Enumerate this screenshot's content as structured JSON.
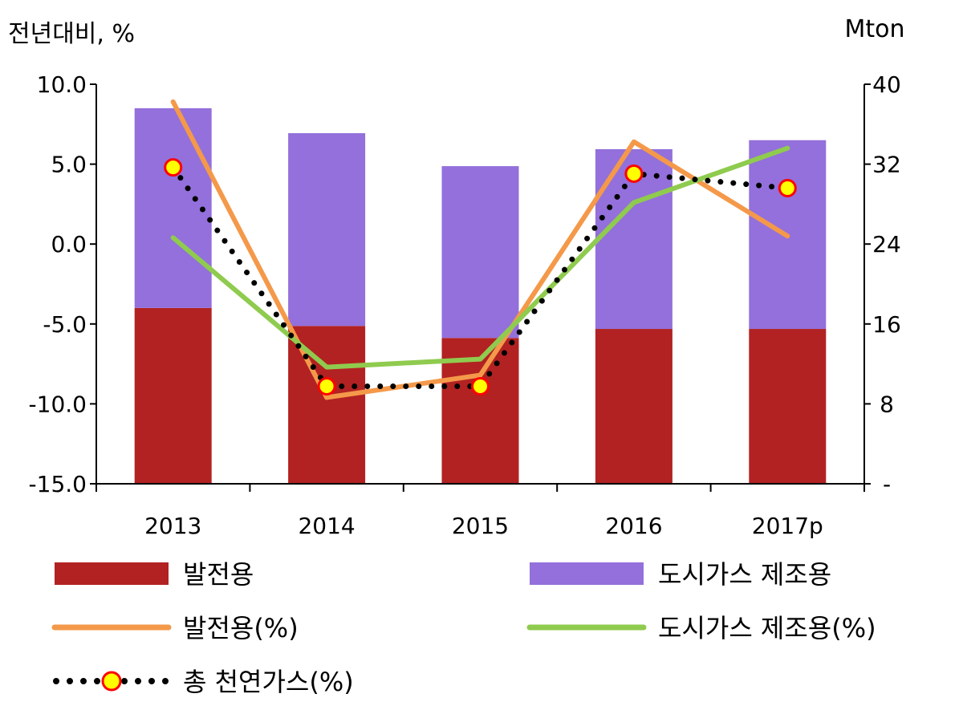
{
  "chart_data": {
    "type": "bar",
    "categories": [
      "2013",
      "2014",
      "2015",
      "2016",
      "2017p"
    ],
    "left_axis": {
      "label": "전년대비, %",
      "ylim": [
        -15,
        10
      ],
      "ticks": [
        "-15.0",
        "-10.0",
        "-5.0",
        "0.0",
        "5.0",
        "10.0"
      ]
    },
    "right_axis": {
      "label": "Mton",
      "ylim": [
        0,
        40
      ],
      "ticks": [
        "-",
        "8",
        "16",
        "24",
        "32",
        "40"
      ]
    },
    "stacked_bars": [
      {
        "name": "발전용",
        "axis": "right",
        "color": "#B22222",
        "values": [
          17.6,
          15.8,
          14.6,
          15.5,
          15.5
        ]
      },
      {
        "name": "도시가스 제조용",
        "axis": "right",
        "color": "#9370DB",
        "values": [
          20.0,
          19.3,
          17.2,
          18.0,
          18.9
        ]
      }
    ],
    "lines": [
      {
        "name": "발전용(%)",
        "axis": "left",
        "color": "#F4994A",
        "style": "solid",
        "values": [
          8.9,
          -9.6,
          -8.2,
          6.4,
          0.5
        ]
      },
      {
        "name": "도시가스 제조용(%)",
        "axis": "left",
        "color": "#8FCB4E",
        "style": "solid",
        "values": [
          0.4,
          -7.7,
          -7.2,
          2.6,
          6.0
        ]
      },
      {
        "name": "총 천연가스(%)",
        "axis": "left",
        "color": "#000000",
        "style": "dotted-markers",
        "marker_fill": "#FFFF00",
        "marker_stroke": "#FF0000",
        "values": [
          4.8,
          -8.9,
          -8.9,
          4.4,
          3.5
        ]
      }
    ],
    "legend": {
      "placement": "bottom",
      "items": [
        {
          "label": "발전용",
          "kind": "bar",
          "color": "#B22222"
        },
        {
          "label": "도시가스 제조용",
          "kind": "bar",
          "color": "#9370DB"
        },
        {
          "label": "발전용(%)",
          "kind": "line",
          "color": "#F4994A"
        },
        {
          "label": "도시가스 제조용(%)",
          "kind": "line",
          "color": "#8FCB4E"
        },
        {
          "label": "총 천연가스(%)",
          "kind": "dotted-marker",
          "color": "#000000"
        }
      ]
    }
  }
}
